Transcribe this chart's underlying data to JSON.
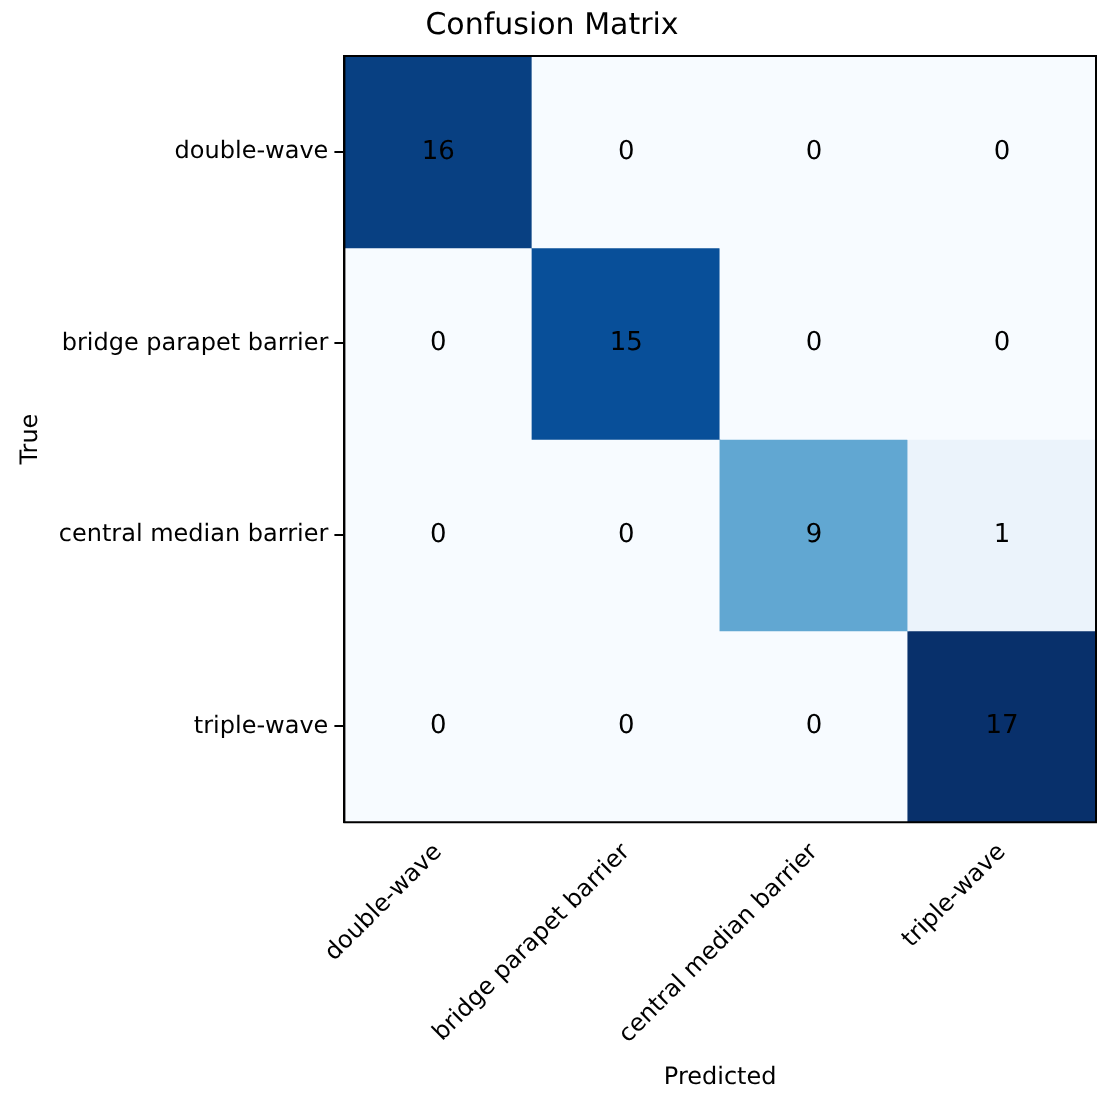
{
  "chart_data": {
    "type": "heatmap",
    "title": "Confusion Matrix",
    "xlabel": "Predicted",
    "ylabel": "True",
    "categories": [
      "double-wave",
      "bridge parapet barrier",
      "central median barrier",
      "triple-wave"
    ],
    "y_categories": [
      "double-wave",
      "bridge parapet barrier",
      "central median barrier",
      "triple-wave"
    ],
    "cells": [
      [
        16,
        0,
        0,
        0
      ],
      [
        0,
        15,
        0,
        0
      ],
      [
        0,
        0,
        9,
        1
      ],
      [
        0,
        0,
        0,
        17
      ]
    ],
    "data_labels": true,
    "grid": false,
    "legend": false
  }
}
